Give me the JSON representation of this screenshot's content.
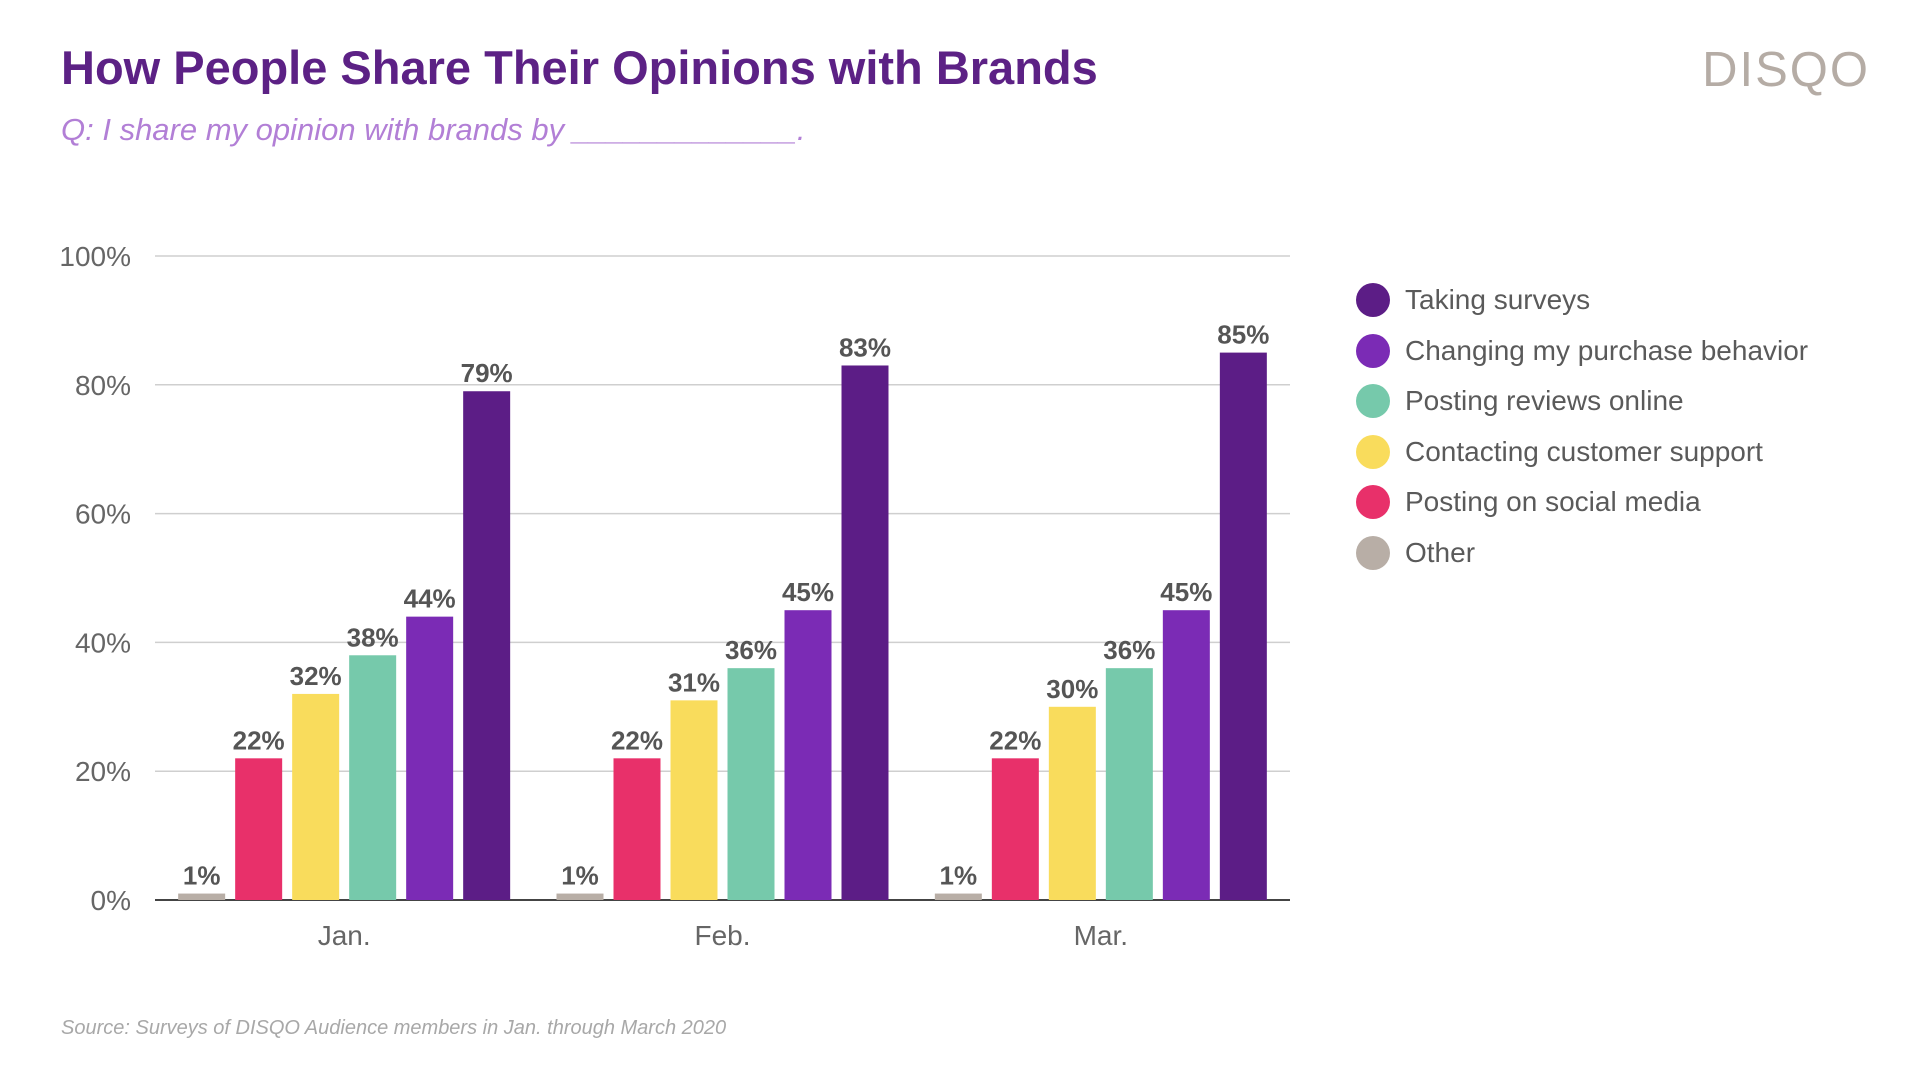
{
  "title": "How People Share Their Opinions with Brands",
  "subtitle": "Q: I share my opinion with brands by _____________.",
  "logo_text": "DISQO",
  "source": "Source: Surveys of DISQO Audience members in Jan. through March 2020",
  "chart_data": {
    "type": "bar",
    "title": "How People Share Their Opinions with Brands",
    "xlabel": "",
    "ylabel": "",
    "ylim": [
      0,
      100
    ],
    "yticks": [
      0,
      20,
      40,
      60,
      80,
      100
    ],
    "ytick_labels": [
      "0%",
      "20%",
      "40%",
      "60%",
      "80%",
      "100%"
    ],
    "grid": true,
    "legend_position": "right",
    "categories": [
      "Jan.",
      "Feb.",
      "Mar."
    ],
    "series": [
      {
        "name": "Other",
        "color": "#b8aea6",
        "values": [
          1,
          1,
          1
        ],
        "labels": [
          "1%",
          "1%",
          "1%"
        ]
      },
      {
        "name": "Posting on social media",
        "color": "#e8306a",
        "values": [
          22,
          22,
          22
        ],
        "labels": [
          "22%",
          "22%",
          "22%"
        ]
      },
      {
        "name": "Contacting customer support",
        "color": "#f9dc5c",
        "values": [
          32,
          31,
          30
        ],
        "labels": [
          "32%",
          "31%",
          "30%"
        ]
      },
      {
        "name": "Posting reviews online",
        "color": "#76c9ab",
        "values": [
          38,
          36,
          36
        ],
        "labels": [
          "38%",
          "36%",
          "36%"
        ]
      },
      {
        "name": "Changing my purchase behavior",
        "color": "#7b2bb5",
        "values": [
          44,
          45,
          45
        ],
        "labels": [
          "44%",
          "45%",
          "45%"
        ]
      },
      {
        "name": "Taking surveys",
        "color": "#5c1d86",
        "values": [
          79,
          83,
          85
        ],
        "labels": [
          "79%",
          "83%",
          "85%"
        ]
      }
    ]
  },
  "legend": [
    {
      "label": "Taking surveys",
      "color": "#5c1d86"
    },
    {
      "label": "Changing my purchase behavior",
      "color": "#7b2bb5"
    },
    {
      "label": "Posting reviews online",
      "color": "#76c9ab"
    },
    {
      "label": "Contacting customer support",
      "color": "#f9dc5c"
    },
    {
      "label": "Posting on social media",
      "color": "#e8306a"
    },
    {
      "label": "Other",
      "color": "#b8aea6"
    }
  ]
}
